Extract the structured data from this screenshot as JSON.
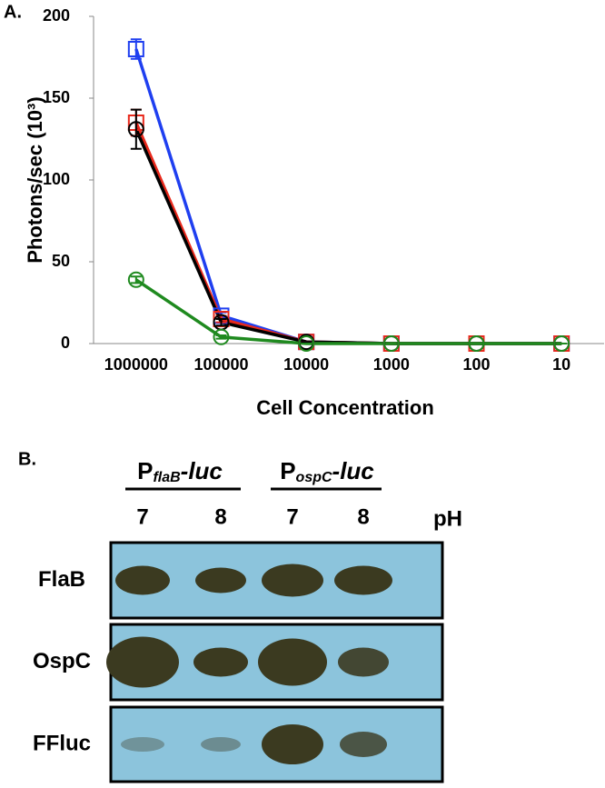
{
  "chart_data": {
    "type": "line",
    "label": "A.",
    "x_label": "Cell Concentration",
    "y_label": "Photons/sec (10³)",
    "categories": [
      "1000000",
      "100000",
      "10000",
      "1000",
      "100",
      "10"
    ],
    "ylim": [
      0,
      200
    ],
    "yticks": [
      0,
      50,
      100,
      150,
      200
    ],
    "grid": false,
    "series": [
      {
        "color": "#1f3ff0",
        "marker": "square",
        "values": [
          180,
          17,
          1,
          0,
          0,
          0
        ],
        "errors": [
          6,
          2,
          0,
          0,
          0,
          0
        ]
      },
      {
        "color": "#e8291c",
        "marker": "square",
        "values": [
          135,
          15,
          1,
          0,
          0,
          0
        ],
        "errors": [
          8,
          2,
          0,
          0,
          0,
          0
        ]
      },
      {
        "color": "#000000",
        "marker": "circle",
        "values": [
          131,
          13,
          1,
          0,
          0,
          0
        ],
        "errors": [
          12,
          2,
          0,
          0,
          0,
          0
        ]
      },
      {
        "color": "#1f8a1f",
        "marker": "circle",
        "values": [
          39,
          4,
          0,
          0,
          0,
          0
        ],
        "errors": [
          2,
          1,
          0,
          0,
          0,
          0
        ]
      }
    ]
  },
  "blot": {
    "label": "B.",
    "groups": [
      {
        "prefix": "P",
        "subscript": "flaB",
        "suffix": "-luc"
      },
      {
        "prefix": "P",
        "subscript": "ospC",
        "suffix": "-luc"
      }
    ],
    "lanes": [
      "7",
      "8",
      "7",
      "8"
    ],
    "lanes_label": "pH",
    "rows": [
      "FlaB",
      "OspC",
      "FFluc"
    ]
  }
}
